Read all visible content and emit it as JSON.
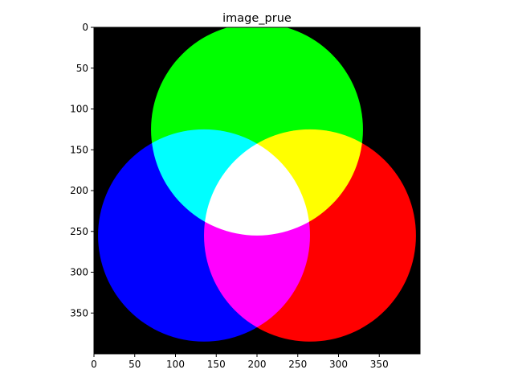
{
  "title": "image_prue",
  "chart_data": {
    "type": "image",
    "title": "image_prue",
    "xlabel": "",
    "ylabel": "",
    "image_size": [
      400,
      400
    ],
    "xlim": [
      0,
      400
    ],
    "ylim": [
      400,
      0
    ],
    "x_ticks": [
      0,
      50,
      100,
      150,
      200,
      250,
      300,
      350
    ],
    "y_ticks": [
      0,
      50,
      100,
      150,
      200,
      250,
      300,
      350
    ],
    "background_color": "#000000",
    "circles": [
      {
        "name": "green",
        "color": "#00ff00",
        "cx": 200,
        "cy": 125,
        "r": 130
      },
      {
        "name": "blue",
        "color": "#0000ff",
        "cx": 135,
        "cy": 255,
        "r": 130
      },
      {
        "name": "red",
        "color": "#ff0000",
        "cx": 265,
        "cy": 255,
        "r": 130
      }
    ],
    "overlap_colors": {
      "green+blue": "#00ffff",
      "green+red": "#ffff00",
      "blue+red": "#ff00ff",
      "green+blue+red": "#ffffff"
    },
    "blend": "additive"
  }
}
